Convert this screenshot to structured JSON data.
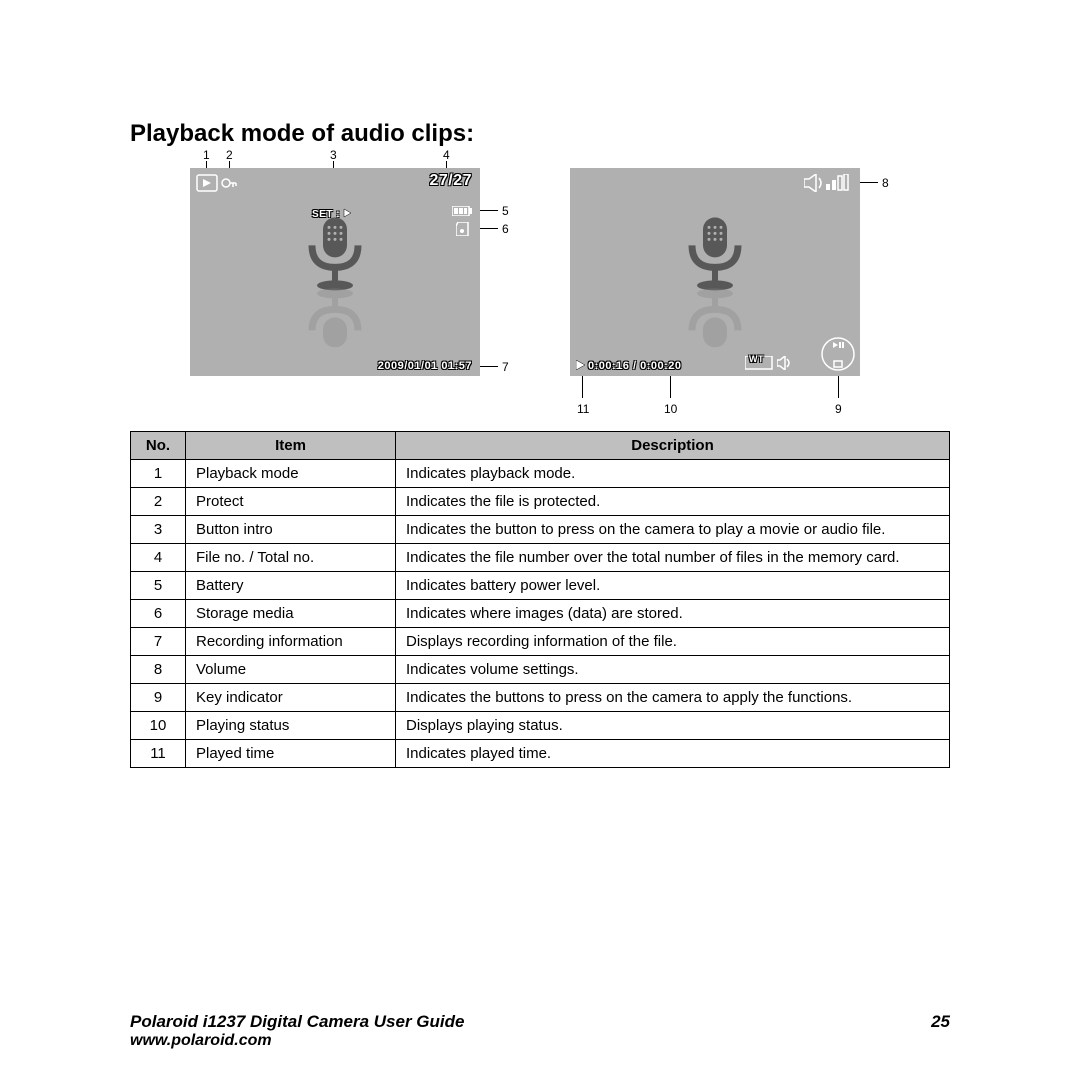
{
  "title": "Playback mode of audio clips:",
  "screen1": {
    "file_counter": "27/27",
    "set_label": "SET :",
    "timestamp": "2009/01/01  01:57",
    "callouts": {
      "c1": "1",
      "c2": "2",
      "c3": "3",
      "c4": "4",
      "c5": "5",
      "c6": "6",
      "c7": "7"
    }
  },
  "screen2": {
    "time_display": "0:00:16 / 0:00:20",
    "wt_label": "WT",
    "callouts": {
      "c8": "8",
      "c9": "9",
      "c10": "10",
      "c11": "11"
    }
  },
  "table": {
    "headers": {
      "no": "No.",
      "item": "Item",
      "desc": "Description"
    },
    "rows": [
      {
        "no": "1",
        "item": "Playback mode",
        "desc": "Indicates playback mode."
      },
      {
        "no": "2",
        "item": "Protect",
        "desc": "Indicates the file is protected."
      },
      {
        "no": "3",
        "item": "Button intro",
        "desc": "Indicates the button to press on the camera to play a movie or audio file."
      },
      {
        "no": "4",
        "item": "File no. / Total no.",
        "desc": "Indicates the file number over the total number of files in the memory card."
      },
      {
        "no": "5",
        "item": "Battery",
        "desc": "Indicates battery power level."
      },
      {
        "no": "6",
        "item": "Storage media",
        "desc": "Indicates where images (data) are stored."
      },
      {
        "no": "7",
        "item": "Recording information",
        "desc": "Displays recording information of the file."
      },
      {
        "no": "8",
        "item": "Volume",
        "desc": "Indicates volume settings."
      },
      {
        "no": "9",
        "item": "Key indicator",
        "desc": "Indicates the buttons to press on the camera to apply the functions."
      },
      {
        "no": "10",
        "item": "Playing status",
        "desc": "Displays playing status."
      },
      {
        "no": "11",
        "item": "Played time",
        "desc": "Indicates played time."
      }
    ]
  },
  "footer": {
    "guide": "Polaroid i1237 Digital Camera User Guide",
    "url": "www.polaroid.com",
    "page": "25"
  },
  "colors": {
    "screen_bg": "#b0b0b0",
    "header_bg": "#bfbfbf",
    "border": "#000000",
    "text": "#000000",
    "icon_gray": "#888888",
    "icon_dark": "#585858"
  }
}
